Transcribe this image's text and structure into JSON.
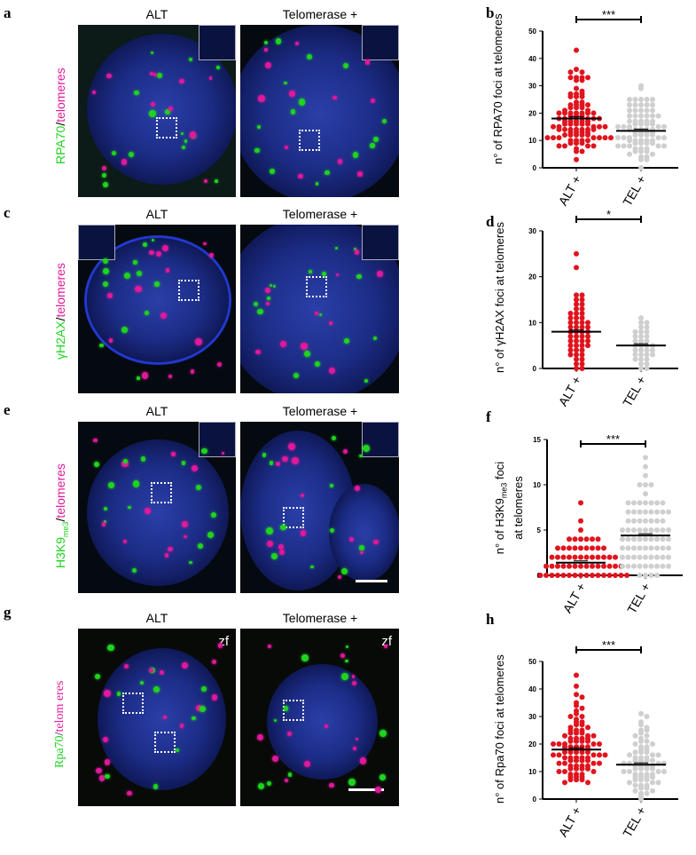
{
  "panels": {
    "a": "a",
    "b": "b",
    "c": "c",
    "d": "d",
    "e": "e",
    "f": "f",
    "g": "g",
    "h": "h"
  },
  "columns": {
    "alt": "ALT",
    "tel": "Telomerase +"
  },
  "rows": [
    {
      "stain": "RPA70",
      "sep": "/",
      "tel": "telomeres"
    },
    {
      "stain": "γH2AX",
      "sep": "/",
      "tel": "telomeres"
    },
    {
      "stain": "H3K9",
      "sub": "me3",
      "sep": "/",
      "tel": "telomeres"
    },
    {
      "stain": "Rpa70",
      "sep": "/",
      "tel": "telom eres"
    }
  ],
  "zf": "zf",
  "colors": {
    "alt": "#e0141e",
    "tel": "#cfcfcf",
    "green": "#1fd31f",
    "magenta": "#e0189a",
    "nucleus": "#1c2c86"
  },
  "chart_data": [
    {
      "type": "scatter",
      "panel": "b",
      "ylabel": "n° of RPA70 foci at telomeres",
      "categories": [
        "ALT +",
        "TEL +"
      ],
      "ylim": [
        0,
        50
      ],
      "yticks": [
        0,
        10,
        20,
        30,
        40,
        50
      ],
      "significance": "***",
      "means": [
        18,
        13.5
      ],
      "series": [
        {
          "values": [
            43,
            36,
            35,
            35,
            33,
            33,
            33,
            33,
            32,
            32,
            29,
            28,
            27,
            27,
            27,
            26,
            26,
            26,
            24,
            24,
            23,
            23,
            23,
            23,
            22,
            22,
            22,
            21,
            21,
            20,
            20,
            20,
            20,
            20,
            20,
            20,
            19,
            19,
            19,
            18,
            18,
            18,
            18,
            18,
            17,
            17,
            17,
            17,
            17,
            16,
            16,
            16,
            16,
            16,
            15,
            15,
            15,
            15,
            15,
            14,
            14,
            14,
            14,
            14,
            14,
            14,
            13,
            13,
            13,
            13,
            12,
            12,
            12,
            12,
            12,
            11,
            11,
            11,
            11,
            11,
            11,
            11,
            10,
            10,
            10,
            10,
            9,
            9,
            9,
            8,
            8,
            8,
            8,
            7,
            6,
            6,
            3
          ]
        },
        {
          "values": [
            30,
            29,
            25,
            25,
            25,
            25,
            25,
            23,
            23,
            23,
            23,
            23,
            21,
            21,
            21,
            21,
            21,
            19,
            19,
            19,
            19,
            19,
            19,
            17,
            17,
            17,
            17,
            17,
            16,
            16,
            16,
            16,
            15,
            15,
            15,
            15,
            15,
            14,
            14,
            14,
            14,
            14,
            13,
            13,
            13,
            13,
            12,
            12,
            12,
            12,
            11,
            11,
            11,
            11,
            11,
            10,
            10,
            10,
            10,
            10,
            9,
            9,
            9,
            9,
            8,
            8,
            8,
            8,
            8,
            7,
            7,
            7,
            6,
            6,
            6,
            5,
            5,
            4,
            4,
            3,
            3,
            0
          ]
        }
      ]
    },
    {
      "type": "scatter",
      "panel": "d",
      "ylabel": "n° of γH2AX foci at telomeres",
      "categories": [
        "ALT +",
        "TEL +"
      ],
      "ylim": [
        0,
        30
      ],
      "yticks": [
        0,
        10,
        20,
        30
      ],
      "significance": "*",
      "means": [
        8,
        5
      ],
      "series": [
        {
          "values": [
            25,
            22,
            16,
            16,
            15,
            15,
            14,
            14,
            13,
            13,
            12,
            12,
            12,
            11,
            11,
            11,
            10,
            10,
            10,
            10,
            9,
            9,
            9,
            9,
            8,
            8,
            8,
            8,
            7,
            7,
            7,
            7,
            6,
            6,
            6,
            6,
            5,
            5,
            5,
            5,
            4,
            4,
            4,
            3,
            3,
            3,
            2,
            2,
            1,
            1,
            0,
            0
          ]
        },
        {
          "values": [
            11,
            10,
            10,
            9,
            9,
            8,
            8,
            8,
            7,
            7,
            7,
            6,
            6,
            6,
            5,
            5,
            5,
            5,
            4,
            4,
            4,
            4,
            3,
            3,
            3,
            3,
            2,
            2,
            2,
            1,
            1,
            0,
            0
          ]
        }
      ]
    },
    {
      "type": "scatter",
      "panel": "f",
      "ylabel": "n° of H3K9me3 foci at telomeres",
      "ylabel_parts": {
        "pre": "n° of H3K9",
        "sub": "me3",
        "post": " foci",
        "line2": "at telomeres"
      },
      "categories": [
        "ALT +",
        "TEL +"
      ],
      "ylim": [
        0,
        15
      ],
      "yticks": [
        0,
        5,
        10,
        15
      ],
      "significance": "***",
      "means": [
        1.4,
        4.4
      ],
      "series": [
        {
          "values": [
            8,
            6,
            5,
            4,
            4,
            4,
            4,
            4,
            4,
            3,
            3,
            3,
            3,
            3,
            3,
            3,
            3,
            3,
            2,
            2,
            2,
            2,
            2,
            2,
            2,
            2,
            2,
            2,
            2,
            2,
            1,
            1,
            1,
            1,
            1,
            1,
            1,
            1,
            1,
            1,
            1,
            1,
            1,
            1,
            0,
            0,
            0,
            0,
            0,
            0,
            0,
            0,
            0,
            0,
            0,
            0,
            0,
            0,
            0,
            0
          ]
        },
        {
          "values": [
            13,
            12,
            11,
            10,
            10,
            10,
            9,
            8,
            8,
            8,
            8,
            8,
            8,
            8,
            7,
            7,
            7,
            7,
            7,
            7,
            7,
            7,
            6,
            6,
            6,
            6,
            6,
            6,
            6,
            5,
            5,
            5,
            5,
            5,
            5,
            5,
            5,
            5,
            4,
            4,
            4,
            4,
            4,
            4,
            4,
            4,
            4,
            3,
            3,
            3,
            3,
            3,
            3,
            3,
            3,
            3,
            2,
            2,
            2,
            2,
            2,
            2,
            2,
            2,
            2,
            1,
            1,
            1,
            1,
            1,
            1,
            1,
            1,
            1,
            0,
            0,
            0,
            0
          ]
        }
      ]
    },
    {
      "type": "scatter",
      "panel": "h",
      "ylabel": "n° of Rpa70 foci at telomeres",
      "categories": [
        "ALT +",
        "TEL +"
      ],
      "ylim": [
        0,
        50
      ],
      "yticks": [
        0,
        10,
        20,
        30,
        40,
        50
      ],
      "significance": "***",
      "means": [
        18,
        12.5
      ],
      "series": [
        {
          "values": [
            45,
            41,
            38,
            37,
            35,
            34,
            33,
            32,
            31,
            30,
            30,
            29,
            28,
            28,
            27,
            27,
            26,
            26,
            25,
            25,
            25,
            24,
            24,
            24,
            23,
            23,
            23,
            22,
            22,
            22,
            22,
            21,
            21,
            21,
            21,
            20,
            20,
            20,
            20,
            20,
            19,
            19,
            19,
            19,
            19,
            18,
            18,
            18,
            18,
            18,
            17,
            17,
            17,
            17,
            17,
            16,
            16,
            16,
            16,
            16,
            15,
            15,
            15,
            15,
            15,
            14,
            14,
            14,
            14,
            13,
            13,
            13,
            13,
            12,
            12,
            12,
            12,
            11,
            11,
            11,
            11,
            10,
            10,
            10,
            9,
            9,
            9,
            8,
            8,
            8,
            7,
            7,
            7,
            6,
            6
          ]
        },
        {
          "values": [
            31,
            30,
            28,
            27,
            26,
            25,
            25,
            24,
            23,
            23,
            22,
            21,
            21,
            20,
            20,
            19,
            19,
            18,
            18,
            17,
            17,
            17,
            16,
            16,
            16,
            15,
            15,
            15,
            14,
            14,
            14,
            14,
            13,
            13,
            13,
            13,
            12,
            12,
            12,
            12,
            11,
            11,
            11,
            11,
            10,
            10,
            10,
            10,
            9,
            9,
            9,
            9,
            8,
            8,
            8,
            8,
            7,
            7,
            7,
            6,
            6,
            6,
            5,
            5,
            5,
            4,
            4,
            3,
            3,
            2,
            2,
            1,
            0
          ]
        }
      ]
    }
  ]
}
